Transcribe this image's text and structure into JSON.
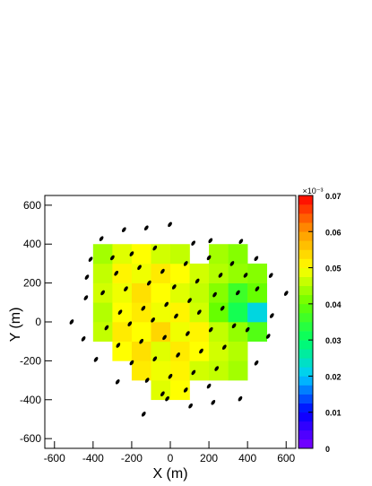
{
  "chart_data": {
    "type": "heatmap",
    "xlabel": "X (m)",
    "ylabel": "Y (m)",
    "xlim": [
      -650,
      650
    ],
    "ylim": [
      -650,
      650
    ],
    "xticks": [
      -600,
      -400,
      -200,
      0,
      200,
      400,
      600
    ],
    "yticks": [
      -600,
      -400,
      -200,
      0,
      200,
      400,
      600
    ],
    "xbins": [
      -500,
      -400,
      -300,
      -200,
      -100,
      0,
      100,
      200,
      300,
      400,
      500,
      600
    ],
    "ybins": [
      -500,
      -400,
      -300,
      -200,
      -100,
      0,
      100,
      200,
      300,
      400,
      500
    ],
    "values": [
      [
        null,
        null,
        null,
        null,
        null,
        null,
        null,
        null,
        null,
        null,
        null
      ],
      [
        null,
        null,
        null,
        null,
        0.048,
        0.05,
        null,
        null,
        null,
        null,
        null
      ],
      [
        null,
        null,
        null,
        0.052,
        0.049,
        0.051,
        0.047,
        0.046,
        0.044,
        null,
        null
      ],
      [
        null,
        null,
        0.05,
        0.053,
        0.048,
        0.052,
        0.05,
        0.047,
        0.045,
        null,
        null
      ],
      [
        null,
        0.046,
        0.052,
        0.05,
        0.054,
        0.049,
        0.051,
        0.046,
        0.043,
        0.038,
        null
      ],
      [
        null,
        0.045,
        0.05,
        0.052,
        0.049,
        0.051,
        0.047,
        0.04,
        0.032,
        0.022,
        null
      ],
      [
        null,
        0.047,
        0.049,
        0.053,
        0.05,
        0.048,
        0.046,
        0.042,
        0.036,
        0.04,
        null
      ],
      [
        null,
        0.046,
        0.051,
        0.049,
        0.052,
        0.05,
        0.047,
        0.045,
        0.043,
        0.042,
        null
      ],
      [
        null,
        0.044,
        0.048,
        0.05,
        0.047,
        0.046,
        null,
        0.044,
        0.042,
        null,
        null
      ],
      [
        null,
        null,
        null,
        null,
        null,
        null,
        null,
        null,
        null,
        null,
        null
      ]
    ],
    "zlim": [
      0,
      0.07
    ],
    "zticks": [
      0,
      0.01,
      0.02,
      0.03,
      0.04,
      0.05,
      0.06,
      0.07
    ],
    "z_multiplier": "×10⁻³",
    "colorscale": [
      "#7f00ff",
      "#0000ff",
      "#00ccff",
      "#00ff66",
      "#66ff00",
      "#ffff00",
      "#ff9900",
      "#ff0000"
    ],
    "markers": {
      "color": "#000000",
      "x": [
        -357,
        -240,
        -124,
        -2,
        119,
        208,
        366,
        445,
        521,
        600,
        526,
        507,
        446,
        362,
        222,
        105,
        -16,
        -138,
        -273,
        -385,
        -450,
        -511,
        -437,
        -432,
        -413,
        -300,
        -200,
        -80,
        -280,
        -160,
        -40,
        80,
        200,
        320,
        -350,
        -230,
        -110,
        20,
        140,
        260,
        390,
        -260,
        -140,
        -20,
        100,
        230,
        350,
        450,
        -330,
        -210,
        -90,
        30,
        150,
        270,
        400,
        -270,
        -150,
        -30,
        90,
        210,
        330,
        -200,
        -80,
        40,
        160,
        280,
        -120,
        0,
        120,
        240,
        -40,
        80,
        200
      ],
      "y": [
        428,
        474,
        483,
        501,
        405,
        418,
        414,
        326,
        239,
        147,
        32,
        -74,
        -211,
        -395,
        -414,
        -432,
        -395,
        -474,
        -308,
        -193,
        -87,
        0,
        124,
        230,
        322,
        330,
        350,
        380,
        250,
        280,
        260,
        300,
        330,
        300,
        150,
        170,
        200,
        180,
        210,
        240,
        240,
        50,
        70,
        90,
        110,
        140,
        150,
        170,
        -30,
        -10,
        10,
        30,
        50,
        70,
        -40,
        -120,
        -100,
        -80,
        -60,
        -40,
        -20,
        -210,
        -190,
        -170,
        -150,
        -130,
        -300,
        -280,
        -260,
        -240,
        -370,
        -350,
        -330
      ]
    }
  }
}
